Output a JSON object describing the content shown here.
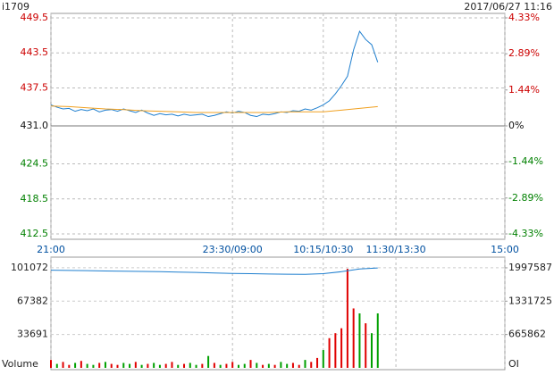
{
  "chart_data": [
    {
      "type": "line",
      "title": "i1709",
      "subtitle": "2017/06/27 11:16",
      "xlim": [
        0,
        375
      ],
      "xticks": [
        {
          "value": 0,
          "label": "21:00"
        },
        {
          "value": 150,
          "label": "23:30/09:00"
        },
        {
          "value": 225,
          "label": "10:15/10:30"
        },
        {
          "value": 285,
          "label": "11:30/13:30"
        },
        {
          "value": 375,
          "label": "15:00"
        }
      ],
      "ylim": [
        412.5,
        449.5
      ],
      "yticks": [
        449.5,
        443.5,
        437.5,
        {
          "value": 431,
          "label": "431.0"
        },
        424.5,
        418.5,
        412.5
      ],
      "y2lim": [
        -4.33,
        4.33
      ],
      "y2ticks": [
        {
          "value": 4.33,
          "label": "4.33%"
        },
        {
          "value": 2.89,
          "label": "2.89%"
        },
        {
          "value": 1.44,
          "label": "1.44%"
        },
        {
          "value": 0,
          "label": "0%"
        },
        {
          "value": -1.44,
          "label": "-1.44%"
        },
        {
          "value": -2.89,
          "label": "-2.89%"
        },
        {
          "value": -4.33,
          "label": "-4.33%"
        }
      ],
      "up_color": "#cc0000",
      "down_color": "#008000",
      "grid": true,
      "series": [
        {
          "color": "#1f7fcf",
          "x": [
            0,
            5,
            10,
            15,
            20,
            25,
            30,
            35,
            40,
            45,
            50,
            55,
            60,
            65,
            70,
            75,
            80,
            85,
            90,
            95,
            100,
            105,
            110,
            115,
            120,
            125,
            130,
            135,
            140,
            145,
            150,
            155,
            160,
            165,
            170,
            175,
            180,
            185,
            190,
            195,
            200,
            205,
            210,
            215,
            220,
            225,
            230,
            235,
            240,
            245,
            250,
            255,
            260,
            265,
            270
          ],
          "values": [
            434.6,
            434.2,
            433.9,
            434.0,
            433.5,
            433.8,
            433.6,
            433.9,
            433.4,
            433.7,
            433.8,
            433.5,
            433.9,
            433.6,
            433.3,
            433.7,
            433.2,
            432.8,
            433.1,
            432.9,
            433.0,
            432.7,
            433.0,
            432.8,
            432.9,
            433.0,
            432.6,
            432.8,
            433.1,
            433.4,
            433.2,
            433.5,
            433.3,
            432.8,
            432.6,
            433.0,
            432.9,
            433.1,
            433.4,
            433.3,
            433.6,
            433.5,
            433.9,
            433.7,
            434.1,
            434.6,
            435.3,
            436.5,
            437.9,
            439.5,
            444.0,
            447.2,
            445.8,
            444.9,
            441.9
          ]
        },
        {
          "color": "#f0a020",
          "x": [
            0,
            15,
            30,
            45,
            60,
            75,
            90,
            105,
            120,
            135,
            150,
            165,
            180,
            195,
            210,
            225,
            240,
            255,
            270
          ],
          "values": [
            434.4,
            434.3,
            434.1,
            433.9,
            433.8,
            433.6,
            433.5,
            433.4,
            433.3,
            433.3,
            433.3,
            433.3,
            433.3,
            433.4,
            433.4,
            433.4,
            433.7,
            434.0,
            434.3
          ]
        }
      ]
    },
    {
      "type": "bar",
      "y_label": "Volume",
      "y2_label": "OI",
      "xlim": [
        0,
        375
      ],
      "ylim": [
        0,
        110000
      ],
      "yticks": [
        33691,
        67382,
        101072
      ],
      "y2lim": [
        0,
        2175000
      ],
      "y2ticks": [
        665862,
        1331725,
        1997587
      ],
      "series": [
        {
          "x": [
            0,
            5,
            10,
            15,
            20,
            25,
            30,
            35,
            40,
            45,
            50,
            55,
            60,
            65,
            70,
            75,
            80,
            85,
            90,
            95,
            100,
            105,
            110,
            115,
            120,
            125,
            130,
            135,
            140,
            145,
            150,
            155,
            160,
            165,
            170,
            175,
            180,
            185,
            190,
            195,
            200,
            205,
            210,
            215,
            220,
            225,
            230,
            235,
            240,
            245,
            250,
            255,
            260,
            265,
            270
          ],
          "values": [
            8000,
            4000,
            6000,
            3000,
            5000,
            7000,
            4000,
            3000,
            5000,
            6000,
            4000,
            3000,
            5000,
            4000,
            6000,
            3000,
            4000,
            5000,
            3000,
            4000,
            6000,
            3000,
            4000,
            5000,
            3000,
            4000,
            12000,
            5000,
            3000,
            4000,
            6000,
            3000,
            4000,
            8000,
            5000,
            3000,
            4000,
            3000,
            6000,
            4000,
            5000,
            3000,
            8000,
            6000,
            10000,
            18000,
            30000,
            35000,
            40000,
            100000,
            60000,
            55000,
            45000,
            35000,
            55000
          ],
          "colors": [
            "#e00000",
            "#00a000",
            "#e00000",
            "#e00000",
            "#00a000",
            "#e00000",
            "#00a000",
            "#00a000",
            "#e00000",
            "#00a000",
            "#e00000",
            "#e00000",
            "#00a000",
            "#00a000",
            "#e00000",
            "#00a000",
            "#e00000",
            "#00a000",
            "#00a000",
            "#e00000",
            "#e00000",
            "#00a000",
            "#e00000",
            "#00a000",
            "#00a000",
            "#e00000",
            "#00a000",
            "#e00000",
            "#00a000",
            "#e00000",
            "#e00000",
            "#00a000",
            "#00a000",
            "#e00000",
            "#00a000",
            "#e00000",
            "#00a000",
            "#e00000",
            "#00a000",
            "#00a000",
            "#e00000",
            "#e00000",
            "#00a000",
            "#e00000",
            "#e00000",
            "#00a000",
            "#e00000",
            "#e00000",
            "#e00000",
            "#e00000",
            "#e00000",
            "#00a000",
            "#e00000",
            "#00a000",
            "#00a000"
          ]
        },
        {
          "axis": "y2",
          "color": "#1f7fcf",
          "x": [
            0,
            15,
            30,
            45,
            60,
            75,
            90,
            105,
            120,
            135,
            150,
            165,
            180,
            195,
            210,
            225,
            240,
            255,
            270
          ],
          "values": [
            1950000,
            1945000,
            1940000,
            1935000,
            1930000,
            1925000,
            1920000,
            1912000,
            1905000,
            1895000,
            1885000,
            1880000,
            1875000,
            1870000,
            1868000,
            1880000,
            1920000,
            1975000,
            1995000
          ]
        }
      ]
    }
  ]
}
